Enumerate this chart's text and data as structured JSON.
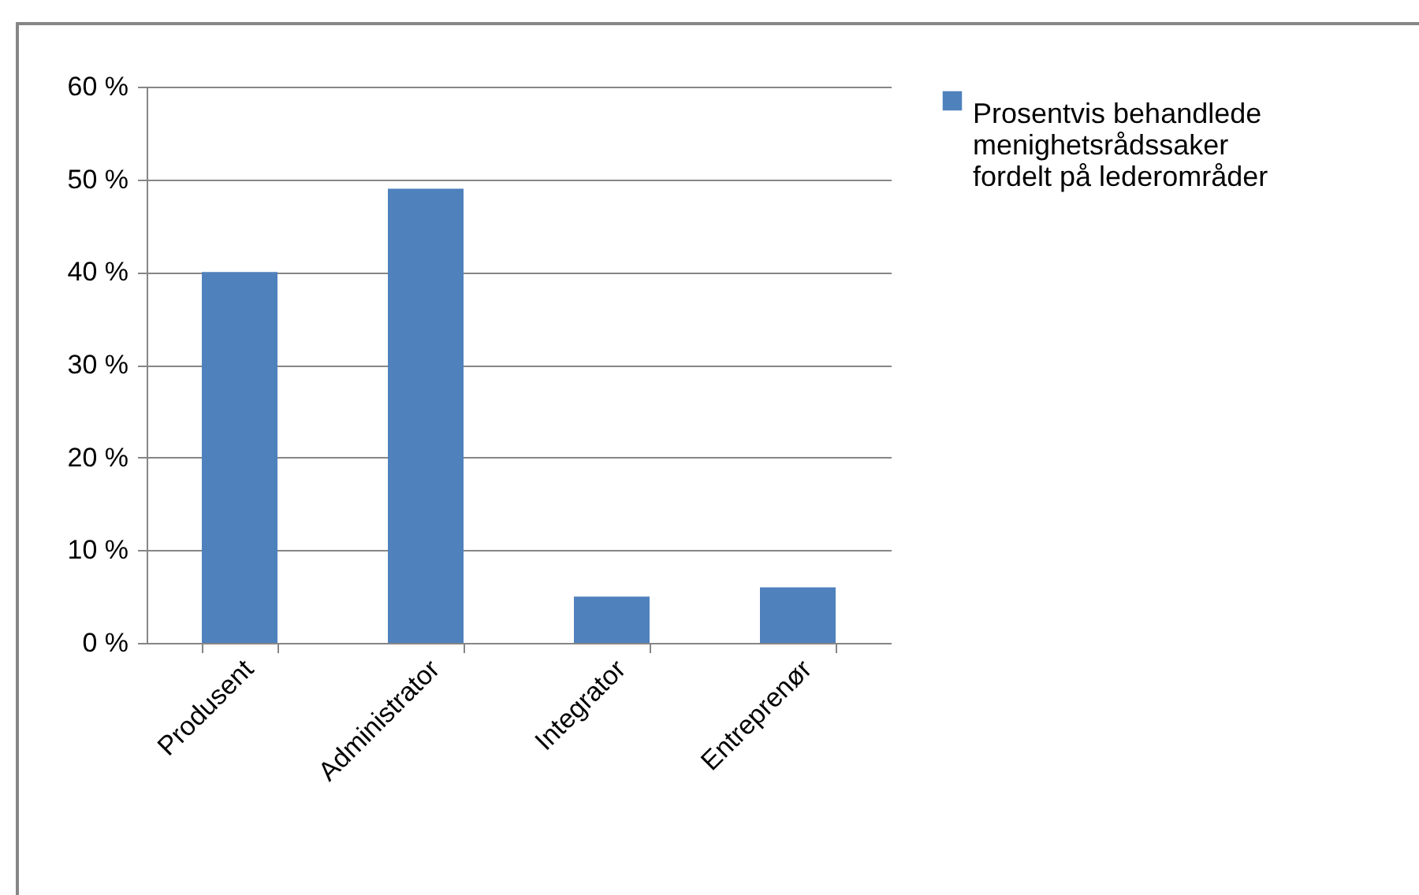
{
  "chart_data": {
    "type": "bar",
    "categories": [
      "Produsent",
      "Administrator",
      "Integrator",
      "Entreprenør"
    ],
    "series": [
      {
        "name": "Prosentvis behandlede menighetsrådssaker fordelt på lederområder",
        "color": "#4f81bd",
        "values": [
          40,
          49,
          5,
          6
        ]
      }
    ],
    "ylim": [
      0,
      60
    ],
    "yticks": [
      {
        "value": 0,
        "label": "0 %"
      },
      {
        "value": 10,
        "label": "10 %"
      },
      {
        "value": 20,
        "label": "20 %"
      },
      {
        "value": 30,
        "label": "30 %"
      },
      {
        "value": 40,
        "label": "40 %"
      },
      {
        "value": 50,
        "label": "50 %"
      },
      {
        "value": 60,
        "label": "60 %"
      }
    ],
    "grid": "y",
    "legend": "right"
  }
}
